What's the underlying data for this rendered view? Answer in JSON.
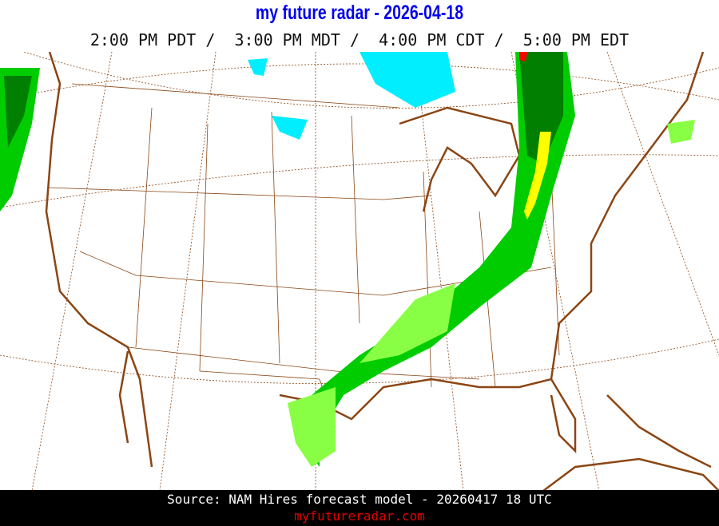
{
  "header": {
    "title": "my future radar - 2026-04-18",
    "times": "2:00 PM PDT /  3:00 PM MDT /  4:00 PM CDT /  5:00 PM EDT"
  },
  "map": {
    "region": "Continental United States",
    "layer": "forecast radar reflectivity",
    "colors": {
      "coast": "#8b4513",
      "border": "#8b4513",
      "grid": "#8b4513",
      "light_rain": "#00dd00",
      "moderate_rain": "#008800",
      "heavy": "#ffff00",
      "intense": "#ff0000",
      "snow": "#00ffff"
    }
  },
  "footer": {
    "source": "Source: NAM Hires forecast model - 20260417 18 UTC",
    "site": "myfutureradar.com"
  }
}
